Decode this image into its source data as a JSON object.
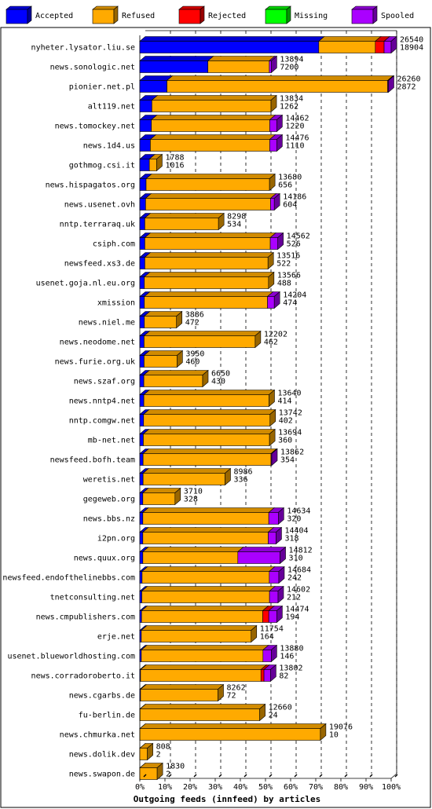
{
  "colors": {
    "accepted": "#0000ff",
    "refused": "#ffaa00",
    "rejected": "#ff0000",
    "missing": "#00ff00",
    "spooled": "#aa00ff",
    "grid": "#000000"
  },
  "chart_data": {
    "type": "bar",
    "orientation": "horizontal",
    "stacked": true,
    "title": "",
    "xlabel": "Outgoing feeds (innfeed) by articles",
    "ylabel": "",
    "xlim": [
      0,
      100
    ],
    "x_ticks": [
      "0%",
      "10%",
      "20%",
      "30%",
      "40%",
      "50%",
      "60%",
      "70%",
      "80%",
      "90%",
      "100%"
    ],
    "legend_position": "top",
    "legend": [
      "Accepted",
      "Refused",
      "Rejected",
      "Missing",
      "Spooled"
    ],
    "series_order": [
      "accepted",
      "refused",
      "rejected",
      "missing",
      "spooled"
    ],
    "rows": [
      {
        "name": "nyheter.lysator.liu.se",
        "offered": "26540",
        "accepted_count": "18904",
        "accepted": 71.2,
        "refused": 22.5,
        "rejected": 3.5,
        "missing": 0,
        "spooled": 2.8
      },
      {
        "name": "news.sonologic.net",
        "offered": "13894",
        "accepted_count": "7200",
        "accepted": 27.1,
        "refused": 24.4,
        "rejected": 0,
        "missing": 0,
        "spooled": 0.8
      },
      {
        "name": "pionier.net.pl",
        "offered": "26260",
        "accepted_count": "2872",
        "accepted": 10.8,
        "refused": 87.8,
        "rejected": 0,
        "missing": 0,
        "spooled": 0.3
      },
      {
        "name": "alt119.net",
        "offered": "13834",
        "accepted_count": "1262",
        "accepted": 4.8,
        "refused": 47.4,
        "rejected": 0,
        "missing": 0,
        "spooled": 0
      },
      {
        "name": "news.tomockey.net",
        "offered": "14462",
        "accepted_count": "1220",
        "accepted": 4.6,
        "refused": 47.1,
        "rejected": 0,
        "missing": 0,
        "spooled": 2.8
      },
      {
        "name": "news.1d4.us",
        "offered": "14476",
        "accepted_count": "1110",
        "accepted": 4.2,
        "refused": 47.5,
        "rejected": 0,
        "missing": 0,
        "spooled": 2.8
      },
      {
        "name": "gothmog.csi.it",
        "offered": "1788",
        "accepted_count": "1016",
        "accepted": 3.8,
        "refused": 2.9,
        "rejected": 0,
        "missing": 0,
        "spooled": 0
      },
      {
        "name": "news.hispagatos.org",
        "offered": "13680",
        "accepted_count": "656",
        "accepted": 2.5,
        "refused": 49.1,
        "rejected": 0,
        "missing": 0,
        "spooled": 0
      },
      {
        "name": "news.usenet.ovh",
        "offered": "14186",
        "accepted_count": "604",
        "accepted": 2.3,
        "refused": 49.7,
        "rejected": 0,
        "missing": 0,
        "spooled": 1.5
      },
      {
        "name": "nntp.terraraq.uk",
        "offered": "8298",
        "accepted_count": "534",
        "accepted": 2.0,
        "refused": 29.3,
        "rejected": 0,
        "missing": 0,
        "spooled": 0
      },
      {
        "name": "csiph.com",
        "offered": "14562",
        "accepted_count": "526",
        "accepted": 2.0,
        "refused": 49.9,
        "rejected": 0,
        "missing": 0,
        "spooled": 3.0
      },
      {
        "name": "newsfeed.xs3.de",
        "offered": "13516",
        "accepted_count": "522",
        "accepted": 2.0,
        "refused": 49.0,
        "rejected": 0,
        "missing": 0,
        "spooled": 0
      },
      {
        "name": "usenet.goja.nl.eu.org",
        "offered": "13566",
        "accepted_count": "488",
        "accepted": 1.8,
        "refused": 49.4,
        "rejected": 0,
        "missing": 0,
        "spooled": 0
      },
      {
        "name": "xmission",
        "offered": "14204",
        "accepted_count": "474",
        "accepted": 1.8,
        "refused": 49.0,
        "rejected": 0,
        "missing": 0,
        "spooled": 2.7
      },
      {
        "name": "news.niel.me",
        "offered": "3886",
        "accepted_count": "472",
        "accepted": 1.8,
        "refused": 12.8,
        "rejected": 0,
        "missing": 0,
        "spooled": 0
      },
      {
        "name": "news.neodome.net",
        "offered": "12202",
        "accepted_count": "462",
        "accepted": 1.7,
        "refused": 44.2,
        "rejected": 0,
        "missing": 0,
        "spooled": 0
      },
      {
        "name": "news.furie.org.uk",
        "offered": "3950",
        "accepted_count": "460",
        "accepted": 1.7,
        "refused": 13.1,
        "rejected": 0,
        "missing": 0,
        "spooled": 0
      },
      {
        "name": "news.szaf.org",
        "offered": "6650",
        "accepted_count": "430",
        "accepted": 1.6,
        "refused": 23.4,
        "rejected": 0,
        "missing": 0,
        "spooled": 0
      },
      {
        "name": "news.nntp4.net",
        "offered": "13640",
        "accepted_count": "414",
        "accepted": 1.6,
        "refused": 49.8,
        "rejected": 0,
        "missing": 0,
        "spooled": 0
      },
      {
        "name": "nntp.comgw.net",
        "offered": "13742",
        "accepted_count": "402",
        "accepted": 1.5,
        "refused": 50.3,
        "rejected": 0,
        "missing": 0,
        "spooled": 0
      },
      {
        "name": "mb-net.net",
        "offered": "13694",
        "accepted_count": "360",
        "accepted": 1.4,
        "refused": 50.2,
        "rejected": 0,
        "missing": 0,
        "spooled": 0
      },
      {
        "name": "newsfeed.bofh.team",
        "offered": "13862",
        "accepted_count": "354",
        "accepted": 1.3,
        "refused": 50.9,
        "rejected": 0,
        "missing": 0,
        "spooled": 0.3
      },
      {
        "name": "weretis.net",
        "offered": "8986",
        "accepted_count": "336",
        "accepted": 1.3,
        "refused": 32.6,
        "rejected": 0,
        "missing": 0,
        "spooled": 0
      },
      {
        "name": "gegeweb.org",
        "offered": "3710",
        "accepted_count": "328",
        "accepted": 1.2,
        "refused": 12.8,
        "rejected": 0,
        "missing": 0,
        "spooled": 0
      },
      {
        "name": "news.bbs.nz",
        "offered": "14634",
        "accepted_count": "320",
        "accepted": 1.2,
        "refused": 50.1,
        "rejected": 0,
        "missing": 0,
        "spooled": 3.8
      },
      {
        "name": "i2pn.org",
        "offered": "14404",
        "accepted_count": "318",
        "accepted": 1.2,
        "refused": 49.9,
        "rejected": 0,
        "missing": 0,
        "spooled": 3.1
      },
      {
        "name": "news.quux.org",
        "offered": "14812",
        "accepted_count": "310",
        "accepted": 1.2,
        "refused": 37.8,
        "rejected": 0,
        "missing": 0,
        "spooled": 16.8
      },
      {
        "name": "newsfeed.endofthelinebbs.com",
        "offered": "14684",
        "accepted_count": "242",
        "accepted": 0.9,
        "refused": 50.6,
        "rejected": 0,
        "missing": 0,
        "spooled": 3.8
      },
      {
        "name": "tnetconsulting.net",
        "offered": "14602",
        "accepted_count": "212",
        "accepted": 0.8,
        "refused": 50.8,
        "rejected": 0,
        "missing": 0,
        "spooled": 3.4
      },
      {
        "name": "news.cmpublishers.com",
        "offered": "14474",
        "accepted_count": "194",
        "accepted": 0.7,
        "refused": 48.2,
        "rejected": 2.4,
        "missing": 0,
        "spooled": 3.2
      },
      {
        "name": "erje.net",
        "offered": "11754",
        "accepted_count": "164",
        "accepted": 0.6,
        "refused": 43.7,
        "rejected": 0,
        "missing": 0,
        "spooled": 0
      },
      {
        "name": "usenet.blueworldhosting.com",
        "offered": "13880",
        "accepted_count": "146",
        "accepted": 0.6,
        "refused": 48.4,
        "rejected": 0,
        "missing": 0,
        "spooled": 3.3
      },
      {
        "name": "news.corradoroberto.it",
        "offered": "13802",
        "accepted_count": "82",
        "accepted": 0.3,
        "refused": 47.9,
        "rejected": 1.2,
        "missing": 0,
        "spooled": 2.6
      },
      {
        "name": "news.cgarbs.de",
        "offered": "8262",
        "accepted_count": "72",
        "accepted": 0.3,
        "refused": 30.8,
        "rejected": 0,
        "missing": 0,
        "spooled": 0
      },
      {
        "name": "fu-berlin.de",
        "offered": "12660",
        "accepted_count": "24",
        "accepted": 0.1,
        "refused": 47.6,
        "rejected": 0,
        "missing": 0,
        "spooled": 0
      },
      {
        "name": "news.chmurka.net",
        "offered": "19076",
        "accepted_count": "10",
        "accepted": 0.04,
        "refused": 71.8,
        "rejected": 0,
        "missing": 0,
        "spooled": 0
      },
      {
        "name": "news.dolik.dev",
        "offered": "808",
        "accepted_count": "2",
        "accepted": 0.01,
        "refused": 3.0,
        "rejected": 0,
        "missing": 0,
        "spooled": 0
      },
      {
        "name": "news.swapon.de",
        "offered": "1830",
        "accepted_count": "2",
        "accepted": 0.01,
        "refused": 6.9,
        "rejected": 0,
        "missing": 0,
        "spooled": 0
      }
    ]
  }
}
